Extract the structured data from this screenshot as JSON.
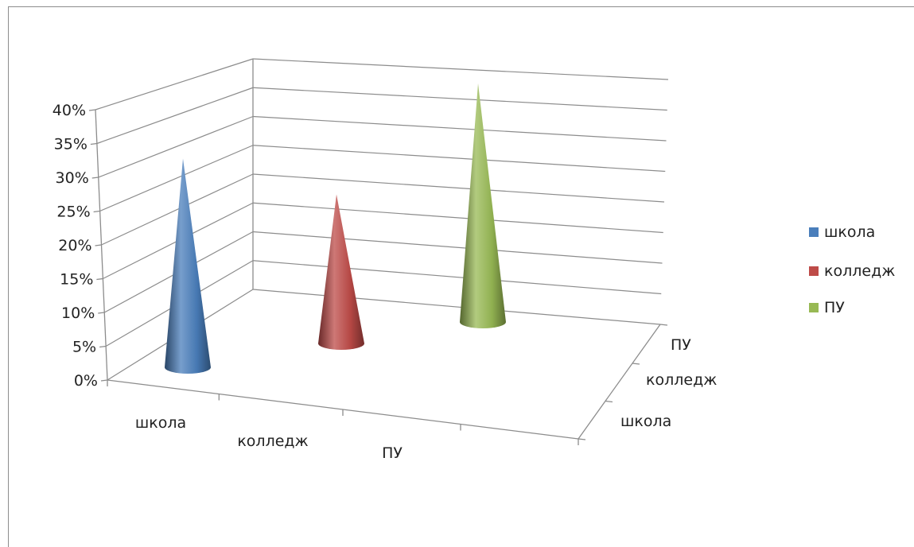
{
  "chart_data": {
    "type": "bar",
    "shape": "3d-cone",
    "categories": [
      "школа",
      "колледж",
      "ПУ"
    ],
    "depth_categories": [
      "школа",
      "колледж",
      "ПУ"
    ],
    "series": [
      {
        "name": "школа",
        "values": [
          35,
          null,
          null
        ],
        "color": "#4a7ebb"
      },
      {
        "name": "колледж",
        "values": [
          null,
          25,
          null
        ],
        "color": "#be4b48"
      },
      {
        "name": "ПУ",
        "values": [
          null,
          null,
          40
        ],
        "color": "#98b954"
      }
    ],
    "yticks": [
      "0%",
      "5%",
      "10%",
      "15%",
      "20%",
      "25%",
      "30%",
      "35%",
      "40%"
    ],
    "ylim": [
      0,
      40
    ],
    "grid": true,
    "legend_position": "right",
    "title": "",
    "xlabel": "",
    "ylabel": ""
  }
}
